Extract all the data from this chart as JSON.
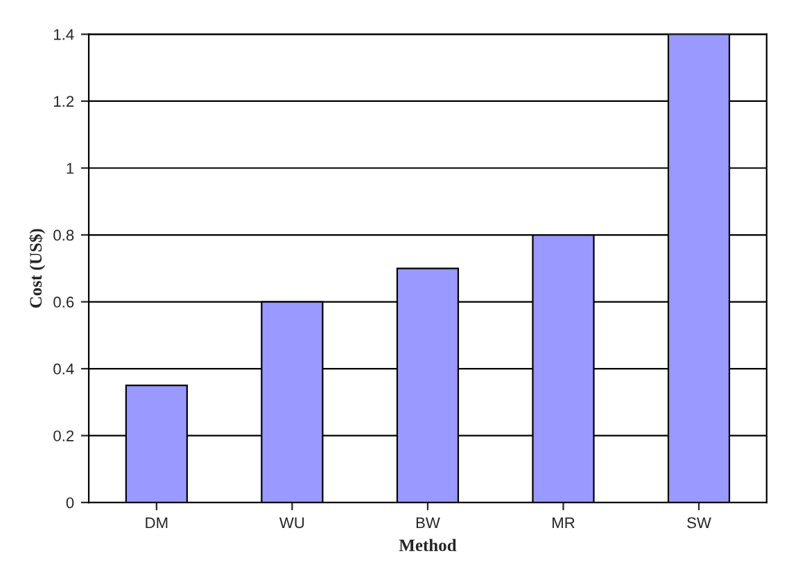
{
  "chart_data": {
    "type": "bar",
    "xlabel": "Method",
    "ylabel": "Cost (US$)",
    "categories": [
      "DM",
      "WU",
      "BW",
      "MR",
      "SW"
    ],
    "values": [
      0.35,
      0.6,
      0.7,
      0.8,
      1.4
    ],
    "color": "#9999ff",
    "ylim": [
      0,
      1.4
    ],
    "yticks": [
      0,
      0.2,
      0.4,
      0.6,
      0.8,
      1,
      1.2,
      1.4
    ],
    "grid": "y",
    "legend": false
  }
}
